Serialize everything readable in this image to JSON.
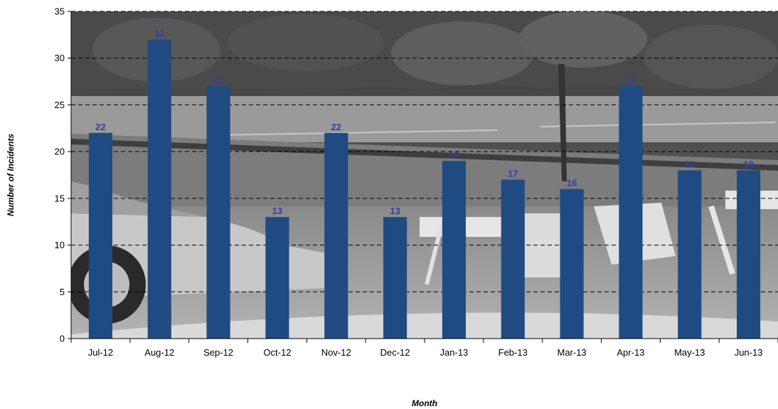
{
  "chart_data": {
    "type": "bar",
    "categories": [
      "Jul-12",
      "Aug-12",
      "Sep-12",
      "Oct-12",
      "Nov-12",
      "Dec-12",
      "Jan-13",
      "Feb-13",
      "Mar-13",
      "Apr-13",
      "May-13",
      "Jun-13"
    ],
    "values": [
      22,
      32,
      27,
      13,
      22,
      13,
      19,
      17,
      16,
      27,
      18,
      18
    ],
    "title": "",
    "xlabel": "Month",
    "ylabel": "Number of Incidents",
    "ylim": [
      0,
      35
    ],
    "yticks": [
      0,
      5,
      10,
      15,
      20,
      25,
      30,
      35
    ],
    "grid": true,
    "grid_style": "dashed horizontal",
    "legend": "none",
    "data_labels": true,
    "background": "grayscale photograph of a road closure with a parked car, barricades and trees",
    "colors": {
      "bar": "#1f4b82",
      "data_label": "#3a3aa8",
      "grid": "#000000",
      "axis": "#000000"
    }
  }
}
